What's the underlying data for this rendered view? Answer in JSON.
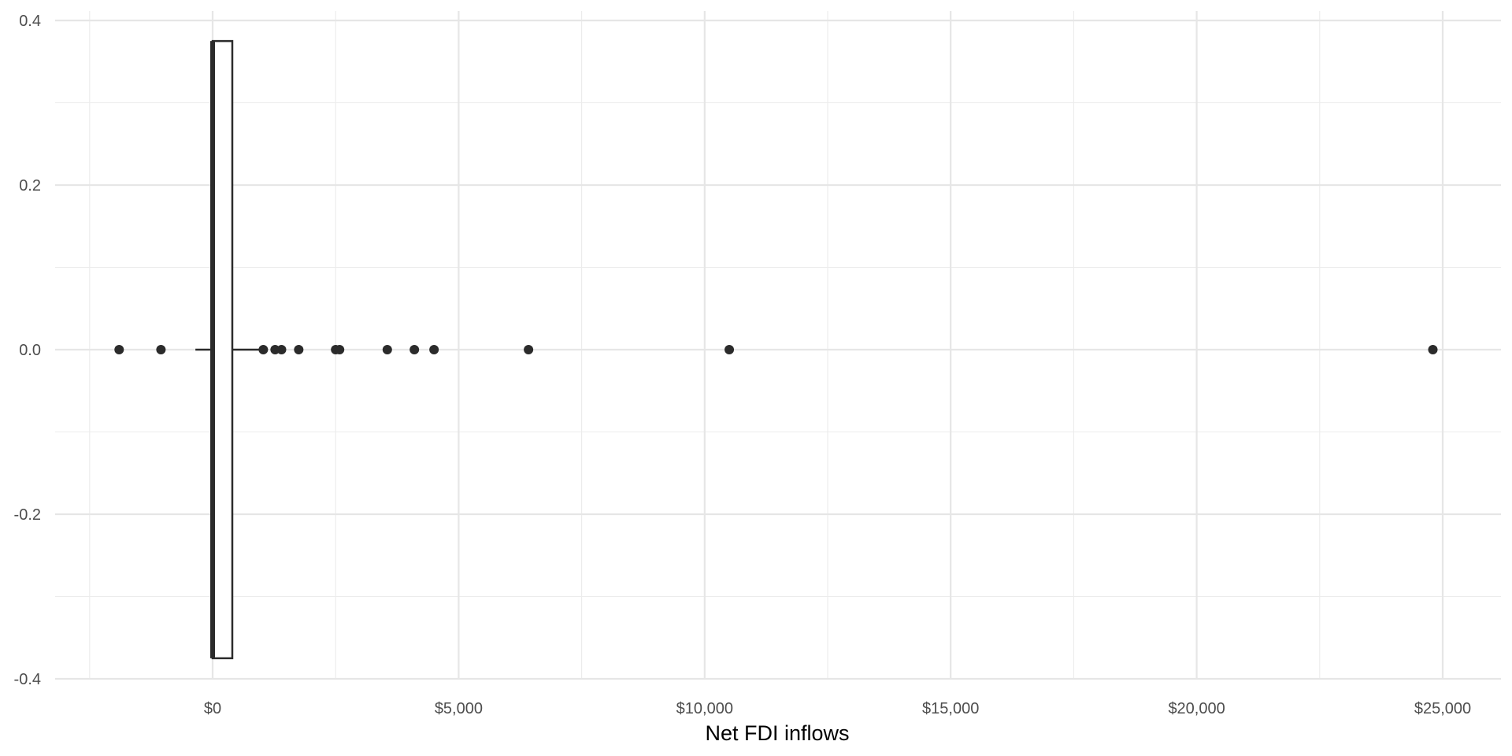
{
  "chart_data": {
    "type": "boxplot",
    "orientation": "horizontal",
    "title": "",
    "xlabel": "Net FDI inflows",
    "ylabel": "",
    "xlim": [
      -3000,
      26000
    ],
    "ylim": [
      -0.4,
      0.4
    ],
    "x_ticks": [
      0,
      5000,
      10000,
      15000,
      20000,
      25000
    ],
    "x_tick_labels": [
      "$0",
      "$5,000",
      "$10,000",
      "$15,000",
      "$20,000",
      "$25,000"
    ],
    "x_minor_ticks": [
      -2500,
      2500,
      7500,
      12500,
      17500,
      22500
    ],
    "y_ticks": [
      0.4,
      0.2,
      0.0,
      -0.2,
      -0.4
    ],
    "y_tick_labels": [
      "0.4",
      "0.2",
      "0.0",
      "-0.2",
      "-0.4"
    ],
    "y_minor_ticks": [
      0.3,
      0.1,
      -0.1,
      -0.3
    ],
    "grid": true,
    "box": {
      "q1": 0,
      "median": 0,
      "q3": 400,
      "whisker_low": -350,
      "whisker_high": 950,
      "y_center": 0,
      "half_width": 0.375
    },
    "outliers": [
      -1900,
      -1050,
      1030,
      1270,
      1400,
      1750,
      2500,
      2580,
      3550,
      4100,
      4500,
      6420,
      10500,
      24800
    ]
  }
}
